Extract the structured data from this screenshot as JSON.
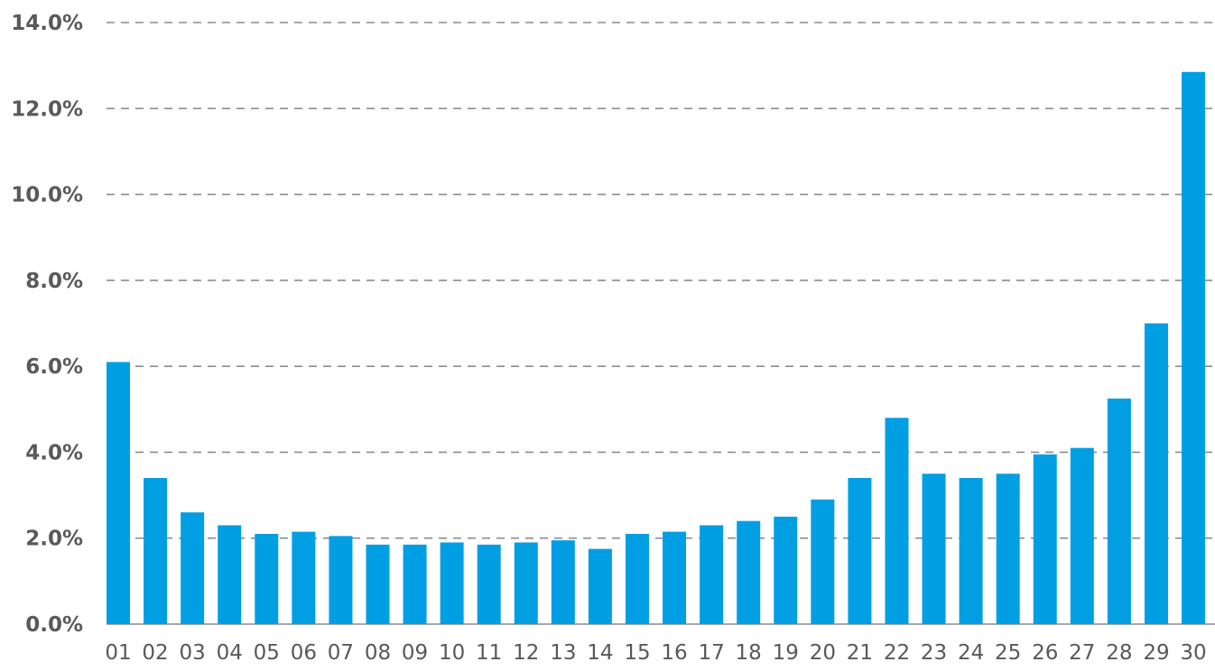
{
  "chart_data": {
    "type": "bar",
    "title": "",
    "xlabel": "",
    "ylabel": "",
    "categories": [
      "01",
      "02",
      "03",
      "04",
      "05",
      "06",
      "07",
      "08",
      "09",
      "10",
      "11",
      "12",
      "13",
      "14",
      "15",
      "16",
      "17",
      "18",
      "19",
      "20",
      "21",
      "22",
      "23",
      "24",
      "25",
      "26",
      "27",
      "28",
      "29",
      "30"
    ],
    "values": [
      6.1,
      3.4,
      2.6,
      2.3,
      2.1,
      2.15,
      2.05,
      1.85,
      1.85,
      1.9,
      1.85,
      1.9,
      1.95,
      1.75,
      2.1,
      2.15,
      2.3,
      2.4,
      2.5,
      2.9,
      3.4,
      4.8,
      3.5,
      3.4,
      3.5,
      3.95,
      4.1,
      5.25,
      7.0,
      12.85
    ],
    "ylim": [
      0,
      14
    ],
    "y_ticks": [
      "0.0%",
      "2.0%",
      "4.0%",
      "6.0%",
      "8.0%",
      "10.0%",
      "12.0%",
      "14.0%"
    ],
    "y_tick_values": [
      0,
      2,
      4,
      6,
      8,
      10,
      12,
      14
    ],
    "grid": true,
    "grid_style": "dashed",
    "legend": "none",
    "colors": {
      "bar": "#009fe3",
      "grid": "#8c8c8c",
      "text": "#595959"
    }
  }
}
